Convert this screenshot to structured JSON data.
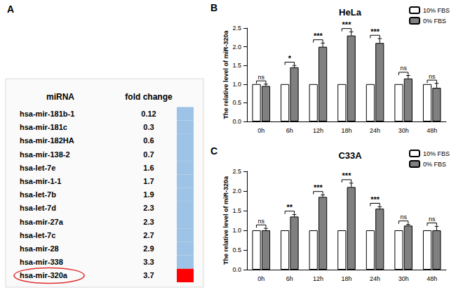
{
  "chart_data": [
    {
      "type": "table",
      "panel_label": "A",
      "columns": [
        "miRNA",
        "fold change"
      ],
      "rows": [
        [
          "hsa-mir-181b-1",
          0.12
        ],
        [
          "hsa-mir-181c",
          0.3
        ],
        [
          "hsa-mir-182HA",
          0.6
        ],
        [
          "hsa-mir-138-2",
          0.7
        ],
        [
          "hsa-let-7e",
          1.6
        ],
        [
          "hsa-mir-1-1",
          1.7
        ],
        [
          "hsa-let-7b",
          1.9
        ],
        [
          "hsa-let-7d",
          2.3
        ],
        [
          "hsa-mir-27a",
          2.3
        ],
        [
          "hsa-let-7c",
          2.7
        ],
        [
          "hsa-mir-28",
          2.9
        ],
        [
          "hsa-mir-338",
          3.3
        ],
        [
          "hsa-mir-320a",
          3.7
        ]
      ],
      "colors": [
        "#9dc3e6",
        "#9dc3e6",
        "#9dc3e6",
        "#9dc3e6",
        "#9dc3e6",
        "#9dc3e6",
        "#9dc3e6",
        "#9dc3e6",
        "#9dc3e6",
        "#9dc3e6",
        "#9dc3e6",
        "#9dc3e6",
        "#ff0000"
      ]
    },
    {
      "type": "bar",
      "panel_label": "B",
      "title": "HeLa",
      "ylabel": "The relative level of miR-320a",
      "categories": [
        "0h",
        "6h",
        "12h",
        "18h",
        "24h",
        "30h",
        "48h"
      ],
      "series": [
        {
          "name": "10% FBS",
          "color": "#ffffff",
          "values": [
            1,
            1,
            1,
            1,
            1,
            1,
            1
          ]
        },
        {
          "name": "0% FBS",
          "color": "#808080",
          "values": [
            0.95,
            1.45,
            2.0,
            2.3,
            2.1,
            1.15,
            0.9
          ],
          "errors": [
            0.05,
            0.05,
            0.1,
            0.1,
            0.12,
            0.08,
            0.12
          ]
        }
      ],
      "annotations": [
        "ns",
        "*",
        "***",
        "***",
        "***",
        "ns",
        "ns"
      ],
      "ylim": [
        0,
        2.5
      ],
      "yticks": [
        {
          "value": 0,
          "label": "0.0"
        },
        {
          "value": 0.5,
          "label": "0.5"
        },
        {
          "value": 1,
          "label": "1.0"
        },
        {
          "value": 1.5,
          "label": "1.5"
        },
        {
          "value": 2,
          "label": "2.0"
        },
        {
          "value": 2.5,
          "label": "2.5"
        }
      ],
      "legend": "upper right",
      "grid": false
    },
    {
      "type": "bar",
      "panel_label": "C",
      "title": "C33A",
      "ylabel": "The relative level of miR-320a",
      "categories": [
        "0h",
        "6h",
        "12h",
        "18h",
        "24h",
        "30h",
        "48h"
      ],
      "series": [
        {
          "name": "10% FBS",
          "color": "#ffffff",
          "values": [
            1,
            1,
            1,
            1,
            1,
            1,
            1
          ]
        },
        {
          "name": "0% FBS",
          "color": "#808080",
          "values": [
            1.0,
            1.35,
            1.85,
            2.1,
            1.55,
            1.12,
            1.0
          ],
          "errors": [
            0.05,
            0.05,
            0.05,
            0.1,
            0.05,
            0.03,
            0.1
          ]
        }
      ],
      "annotations": [
        "ns",
        "**",
        "***",
        "***",
        "***",
        "ns",
        "ns"
      ],
      "ylim": [
        0,
        2.5
      ],
      "yticks": [
        {
          "value": 0,
          "label": "0.0"
        },
        {
          "value": 0.5,
          "label": "0.5"
        },
        {
          "value": 1,
          "label": "1.0"
        },
        {
          "value": 1.5,
          "label": "1.5"
        },
        {
          "value": 2,
          "label": "2.0"
        },
        {
          "value": 2.5,
          "label": "2.5"
        }
      ],
      "legend": "upper right",
      "grid": false
    }
  ]
}
